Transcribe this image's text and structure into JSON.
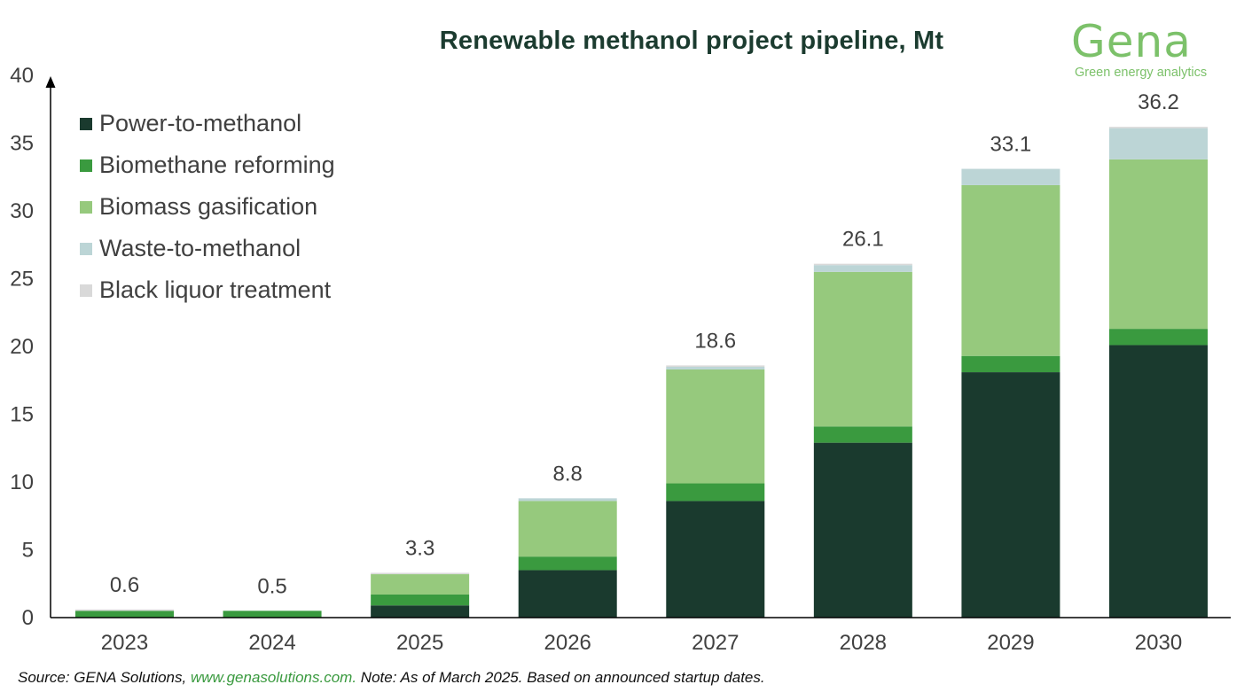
{
  "header": {
    "title": "Renewable methanol project pipeline, Mt"
  },
  "logo": {
    "word": "Gena",
    "tagline": "Green energy analytics"
  },
  "footer": {
    "source_prefix": "Source: GENA Solutions, ",
    "source_link": "www.genasolutions.com.",
    "note": " Note: As of March 2025. Based on announced startup dates."
  },
  "colors": {
    "power_to_methanol": "#1a3a2e",
    "biomethane_reforming": "#3a9a3f",
    "biomass_gasification": "#96c97d",
    "waste_to_methanol": "#bcd5d6",
    "black_liquor_treatment": "#d9d9d9"
  },
  "chart_data": {
    "type": "bar",
    "stacked": true,
    "title": "Renewable methanol project pipeline, Mt",
    "xlabel": "",
    "ylabel": "",
    "ylim": [
      0,
      40
    ],
    "yticks": [
      0,
      5,
      10,
      15,
      20,
      25,
      30,
      35,
      40
    ],
    "categories": [
      "2023",
      "2024",
      "2025",
      "2026",
      "2027",
      "2028",
      "2029",
      "2030"
    ],
    "series": [
      {
        "name": "Power-to-methanol",
        "color": "#1a3a2e",
        "values": [
          0.0,
          0.0,
          0.9,
          3.5,
          8.6,
          12.9,
          18.1,
          20.1
        ]
      },
      {
        "name": "Biomethane reforming",
        "color": "#3a9a3f",
        "values": [
          0.5,
          0.5,
          0.8,
          1.0,
          1.3,
          1.2,
          1.2,
          1.2
        ]
      },
      {
        "name": "Biomass gasification",
        "color": "#96c97d",
        "values": [
          0.0,
          0.0,
          1.5,
          4.1,
          8.4,
          11.4,
          12.6,
          12.5
        ]
      },
      {
        "name": "Waste-to-methanol",
        "color": "#bcd5d6",
        "values": [
          0.0,
          0.0,
          0.0,
          0.2,
          0.2,
          0.5,
          1.2,
          2.3
        ]
      },
      {
        "name": "Black liquor treatment",
        "color": "#d9d9d9",
        "values": [
          0.1,
          0.0,
          0.1,
          0.0,
          0.1,
          0.1,
          0.0,
          0.1
        ]
      }
    ],
    "totals": [
      "0.6",
      "0.5",
      "3.3",
      "8.8",
      "18.6",
      "26.1",
      "33.1",
      "36.2"
    ],
    "legend_position": "top-left"
  }
}
